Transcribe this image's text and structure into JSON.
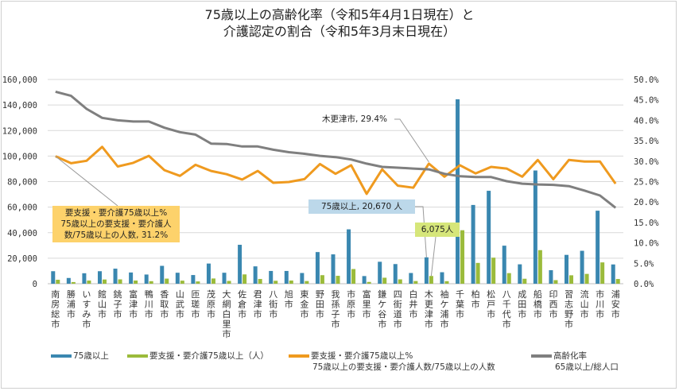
{
  "chart_data": {
    "type": "bar",
    "title_line1": "75歳以上の高齢化率（令和5年4月1日現在）と",
    "title_line2": "介護認定の割合（令和5年3月末日現在）",
    "categories": [
      "南房総市",
      "勝浦市",
      "いすみ市",
      "館山市",
      "銚子市",
      "富津市",
      "鴨川市",
      "香取市",
      "山武市",
      "匝瑳市",
      "茂原市",
      "大網白里市",
      "佐倉市",
      "君津市",
      "八街市",
      "旭市",
      "東金市",
      "野田市",
      "我孫子市",
      "市原市",
      "富里市",
      "鎌ケ谷市",
      "四街道市",
      "白井市",
      "木更津市",
      "袖ケ浦市",
      "千葉市",
      "柏市",
      "松戸市",
      "八千代市",
      "成田市",
      "船橋市",
      "印西市",
      "習志野市",
      "流山市",
      "市川市",
      "浦安市"
    ],
    "series": [
      {
        "name": "75歳以上",
        "axis": "left",
        "kind": "bar",
        "color": "#3a87b0",
        "values": [
          9800,
          4500,
          8200,
          9800,
          11800,
          8800,
          7200,
          14000,
          8600,
          6800,
          15800,
          8600,
          30500,
          13600,
          10000,
          10000,
          8400,
          24800,
          23000,
          42600,
          6000,
          17200,
          15400,
          8400,
          20670,
          9000,
          144500,
          61700,
          72800,
          29800,
          15200,
          88700,
          10600,
          22600,
          25800,
          57200,
          15100
        ]
      },
      {
        "name": "要支援・要介護75歳以上（人）",
        "axis": "left",
        "kind": "bar",
        "color": "#9bbb3b",
        "values": [
          3100,
          1300,
          2500,
          3300,
          3400,
          2500,
          2000,
          4000,
          2400,
          1800,
          4100,
          2200,
          7300,
          3700,
          2300,
          2500,
          2100,
          6700,
          6200,
          11500,
          1400,
          4700,
          3400,
          2100,
          6075,
          2000,
          41900,
          16300,
          20400,
          8300,
          3900,
          26300,
          2800,
          6600,
          7700,
          16700,
          3700
        ]
      },
      {
        "name": "要支援・要介護75歳以上%",
        "sub": "75歳以上の要支援・要介護人数/75歳以上の人数",
        "axis": "right",
        "kind": "line",
        "color": "#ef9a1f",
        "values": [
          31.2,
          29.5,
          30.1,
          33.5,
          28.7,
          29.6,
          31.3,
          27.8,
          26.4,
          29.1,
          27.6,
          26.8,
          25.5,
          27.6,
          24.7,
          24.9,
          25.6,
          29.3,
          26.9,
          29.0,
          22.0,
          28.0,
          24.0,
          23.5,
          29.4,
          26.2,
          29.0,
          27.0,
          28.6,
          28.2,
          26.2,
          30.3,
          25.6,
          30.3,
          29.9,
          29.9,
          24.5
        ]
      },
      {
        "name": "高齢化率",
        "sub": "65歳以上/総人口",
        "axis": "right",
        "kind": "line",
        "color": "#7f7f7f",
        "values": [
          47.0,
          46.0,
          42.8,
          40.6,
          40.0,
          39.7,
          39.7,
          38.2,
          37.1,
          36.5,
          34.3,
          34.2,
          33.6,
          33.6,
          32.8,
          32.2,
          31.8,
          31.3,
          31.0,
          30.4,
          29.4,
          28.6,
          28.4,
          28.2,
          28.0,
          26.9,
          26.3,
          26.1,
          26.1,
          25.1,
          24.5,
          24.3,
          24.2,
          23.9,
          22.8,
          21.6,
          18.6
        ]
      }
    ],
    "left_axis": {
      "ylim": [
        0,
        160000
      ],
      "ticks": [
        "0",
        "20,000",
        "40,000",
        "60,000",
        "80,000",
        "100,000",
        "120,000",
        "140,000",
        "160,000"
      ]
    },
    "right_axis": {
      "ylim": [
        0,
        50
      ],
      "ticks": [
        "0.0%",
        "5.0%",
        "10.0%",
        "15.0%",
        "20.0%",
        "25.0%",
        "30.0%",
        "35.0%",
        "40.0%",
        "45.0%",
        "50.0%"
      ]
    },
    "grid": true,
    "legend_position": "bottom",
    "annotations": {
      "first_pct": {
        "lines": [
          "要支援・要介護75歳以上%",
          "75歳以上の要支援・要介護人",
          "数/75歳以上の人数, 31.2%"
        ],
        "color": "#fdd26b"
      },
      "kisarazu_pct": {
        "text": "木更津市, 29.4%"
      },
      "kisarazu_75": {
        "text": "75歳以上, 20,670 人",
        "color": "#bcd8ea"
      },
      "kisarazu_care": {
        "text": "6,075人",
        "color": "#d6e67a"
      }
    }
  }
}
